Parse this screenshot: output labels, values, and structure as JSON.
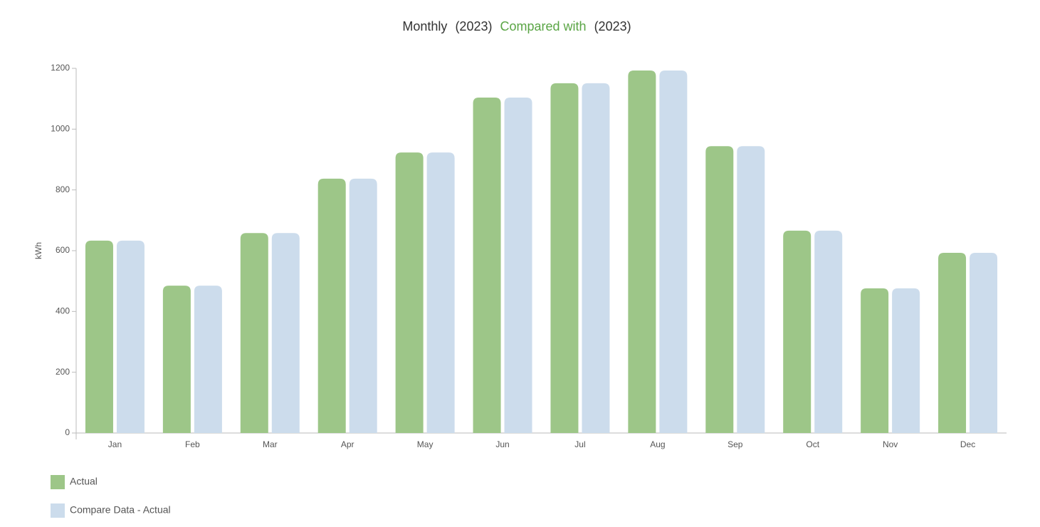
{
  "chart_data": {
    "type": "bar",
    "title": {
      "prefix": "Monthly",
      "period": "(2023)",
      "compare": "Compared with",
      "compare_period": "(2023)"
    },
    "y_label": "kWh",
    "categories": [
      "Jan",
      "Feb",
      "Mar",
      "Apr",
      "May",
      "Jun",
      "Jul",
      "Aug",
      "Sep",
      "Oct",
      "Nov",
      "Dec"
    ],
    "series": [
      {
        "name": "Actual",
        "color": "#9dc688",
        "values": [
          633,
          485,
          658,
          837,
          923,
          1104,
          1151,
          1193,
          944,
          666,
          476,
          593
        ]
      },
      {
        "name": "Compare Data - Actual",
        "color": "#ccdcec",
        "values": [
          633,
          485,
          658,
          837,
          923,
          1104,
          1151,
          1193,
          944,
          666,
          476,
          593
        ]
      }
    ],
    "ylim": [
      0,
      1200
    ],
    "yticks": [
      0,
      200,
      400,
      600,
      800,
      1000,
      1200
    ],
    "grid": false,
    "legend": "bottom-left",
    "compare_color": "#5aa545"
  }
}
